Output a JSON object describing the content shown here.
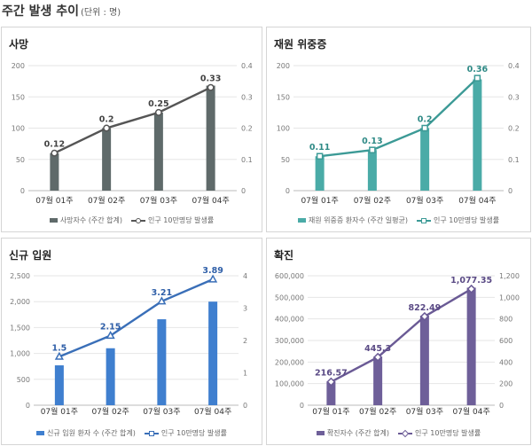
{
  "header": {
    "title": "주간 발생 추이",
    "unit": "(단위 : 명)"
  },
  "chart_data": [
    {
      "type": "bar",
      "title": "사망",
      "categories": [
        "07월 01주",
        "07월 02주",
        "07월 03주",
        "07월 04주"
      ],
      "series": [
        {
          "name": "사망자수 (주간 합계)",
          "kind": "bar",
          "axis": "left",
          "values": [
            60,
            100,
            125,
            168
          ]
        },
        {
          "name": "인구 10만명당 발생률",
          "kind": "line",
          "axis": "right",
          "marker": "circle",
          "values": [
            0.12,
            0.2,
            0.25,
            0.33
          ],
          "labels": [
            "0.12",
            "0.2",
            "0.25",
            "0.33"
          ]
        }
      ],
      "y_left": {
        "min": 0,
        "max": 200,
        "ticks": [
          "0",
          "50",
          "100",
          "150",
          "200"
        ]
      },
      "y_right": {
        "min": 0,
        "max": 0.4,
        "ticks": [
          "0",
          "0.1",
          "0.2",
          "0.3",
          "0.4"
        ]
      },
      "colors": {
        "bar": "#5f6a6a",
        "line": "#555555",
        "label": "#444444"
      },
      "grid": true,
      "legend": "bottom"
    },
    {
      "type": "bar",
      "title": "재원 위중증",
      "categories": [
        "07월 01주",
        "07월 02주",
        "07월 03주",
        "07월 04주"
      ],
      "series": [
        {
          "name": "재원 위중증 환자수 (주간 일평균)",
          "kind": "bar",
          "axis": "left",
          "values": [
            55,
            65,
            100,
            178
          ]
        },
        {
          "name": "인구 10만명당 발생률",
          "kind": "line",
          "axis": "right",
          "marker": "square",
          "values": [
            0.11,
            0.13,
            0.2,
            0.36
          ],
          "labels": [
            "0.11",
            "0.13",
            "0.2",
            "0.36"
          ]
        }
      ],
      "y_left": {
        "min": 0,
        "max": 200,
        "ticks": [
          "0",
          "50",
          "100",
          "150",
          "200"
        ]
      },
      "y_right": {
        "min": 0,
        "max": 0.4,
        "ticks": [
          "0",
          "0.1",
          "0.2",
          "0.3",
          "0.4"
        ]
      },
      "colors": {
        "bar": "#4aaba7",
        "line": "#3c9a96",
        "label": "#2f8a86"
      },
      "grid": true,
      "legend": "bottom"
    },
    {
      "type": "bar",
      "title": "신규 입원",
      "categories": [
        "07월 01주",
        "07월 02주",
        "07월 03주",
        "07월 04주"
      ],
      "series": [
        {
          "name": "신규 입원 환자 수 (주간 합계)",
          "kind": "bar",
          "axis": "left",
          "values": [
            770,
            1100,
            1660,
            2000
          ]
        },
        {
          "name": "인구 10만명당 발생률",
          "kind": "line",
          "axis": "right",
          "marker": "triangle",
          "values": [
            1.5,
            2.15,
            3.21,
            3.89
          ],
          "labels": [
            "1.5",
            "2.15",
            "3.21",
            "3.89"
          ]
        }
      ],
      "y_left": {
        "min": 0,
        "max": 2500,
        "ticks": [
          "0",
          "500",
          "1,000",
          "1,500",
          "2,000",
          "2,500"
        ]
      },
      "y_right": {
        "min": 0,
        "max": 4,
        "ticks": [
          "0",
          "1",
          "2",
          "3",
          "4"
        ]
      },
      "colors": {
        "bar": "#3f7fcf",
        "line": "#3a6fb8",
        "label": "#2f5fa8"
      },
      "grid": true,
      "legend": "bottom"
    },
    {
      "type": "bar",
      "title": "확진",
      "categories": [
        "07월 01주",
        "07월 02주",
        "07월 03주",
        "07월 04주"
      ],
      "series": [
        {
          "name": "확진자수 (주간 합계)",
          "kind": "bar",
          "axis": "left",
          "values": [
            110000,
            225000,
            415000,
            545000
          ]
        },
        {
          "name": "인구 10만명당 발생률",
          "kind": "line",
          "axis": "right",
          "marker": "diamond",
          "values": [
            216.57,
            445.3,
            822.49,
            1077.35
          ],
          "labels": [
            "216.57",
            "445.3",
            "822.49",
            "1,077.35"
          ]
        }
      ],
      "y_left": {
        "min": 0,
        "max": 600000,
        "ticks": [
          "0",
          "100,000",
          "200,000",
          "300,000",
          "400,000",
          "500,000",
          "600,000"
        ]
      },
      "y_right": {
        "min": 0,
        "max": 1200,
        "ticks": [
          "0",
          "200",
          "400",
          "600",
          "800",
          "1,000",
          "1,200"
        ]
      },
      "colors": {
        "bar": "#6e5f99",
        "line": "#6a5a95",
        "label": "#5a4a85"
      },
      "grid": true,
      "legend": "bottom"
    }
  ]
}
